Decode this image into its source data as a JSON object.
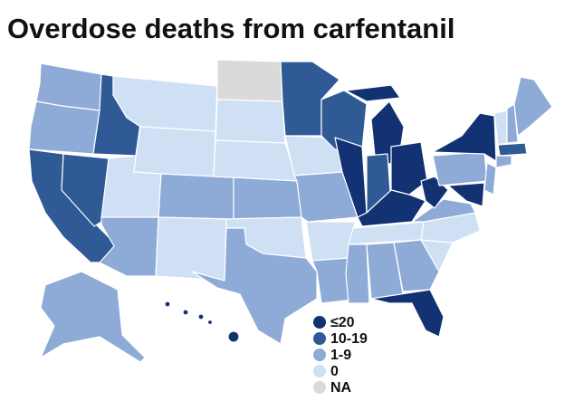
{
  "title": "Overdose deaths from carfentanil",
  "legend": {
    "items": [
      {
        "label": "≤20",
        "color": "#123274"
      },
      {
        "label": "10-19",
        "color": "#2f5a95"
      },
      {
        "label": "1-9",
        "color": "#8eaad6"
      },
      {
        "label": "0",
        "color": "#cfe0f5"
      },
      {
        "label": "NA",
        "color": "#dadada"
      }
    ]
  }
}
